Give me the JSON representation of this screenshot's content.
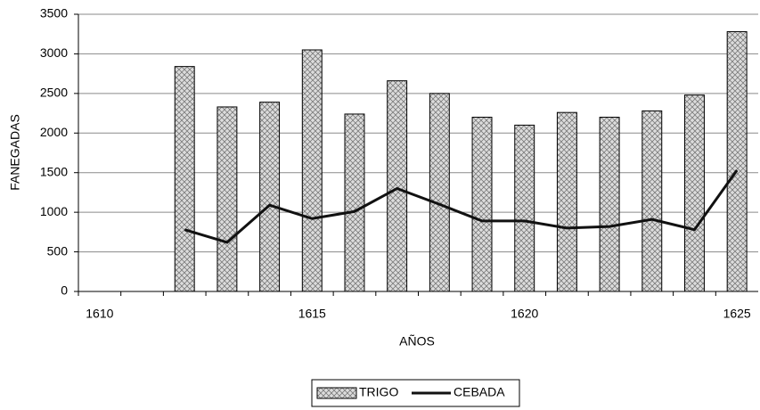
{
  "chart_data": {
    "type": "bar_line",
    "x_label": "AÑOS",
    "y_label": "FANEGADAS",
    "categories": [
      1610,
      null,
      null,
      null,
      null,
      1615,
      null,
      null,
      null,
      null,
      1620,
      null,
      null,
      null,
      null,
      1625
    ],
    "series": [
      {
        "name": "TRIGO",
        "type": "bar",
        "color": "#dcdcdc",
        "values": [
          null,
          null,
          2840,
          2330,
          2390,
          3050,
          2240,
          2660,
          2500,
          2200,
          2100,
          2260,
          2200,
          2280,
          2480,
          3280
        ]
      },
      {
        "name": "CEBADA",
        "type": "line",
        "color": "#111111",
        "values": [
          null,
          null,
          780,
          620,
          1090,
          920,
          1010,
          1300,
          1100,
          890,
          890,
          800,
          820,
          910,
          780,
          1530
        ]
      }
    ],
    "ylim": [
      0,
      3500
    ],
    "yticks": [
      0,
      500,
      1000,
      1500,
      2000,
      2500,
      3000,
      3500
    ],
    "grid": true
  }
}
